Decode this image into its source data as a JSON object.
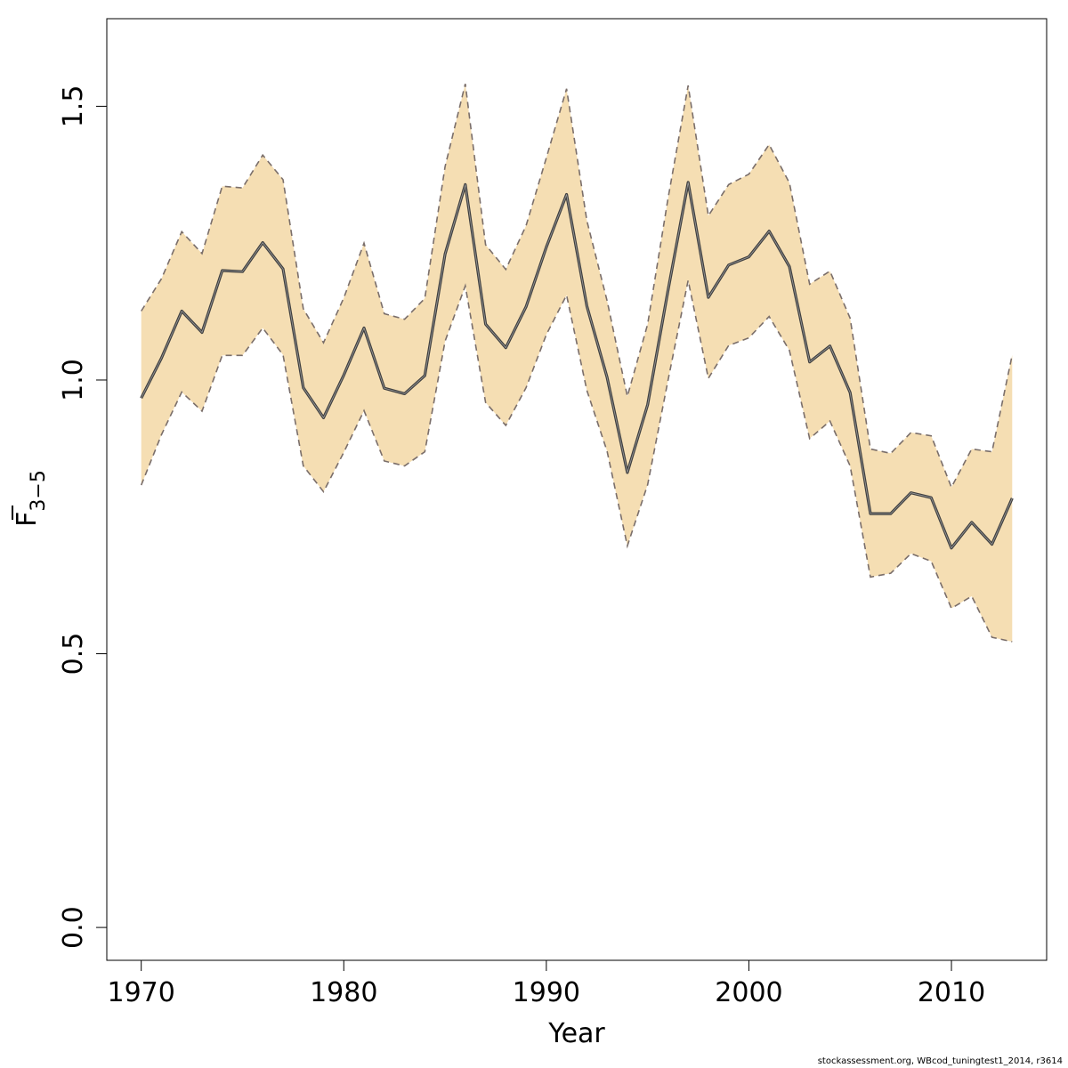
{
  "chart_data": {
    "type": "line",
    "xlabel": "Year",
    "ylabel": {
      "main": "F",
      "subscript": "3−5",
      "overline": true
    },
    "xlim": [
      1968.3,
      2014.7
    ],
    "ylim": [
      -0.06,
      1.66
    ],
    "x_ticks": [
      1970,
      1980,
      1990,
      2000,
      2010
    ],
    "y_ticks": [
      "0.0",
      "0.5",
      "1.0",
      "1.5"
    ],
    "grid": false,
    "legend": "none",
    "band_color": "#F5DEB3",
    "band_edge_color": "#7a6e6a",
    "line_color": "#404040",
    "x": [
      1970,
      1971,
      1972,
      1973,
      1974,
      1975,
      1976,
      1977,
      1978,
      1979,
      1980,
      1981,
      1982,
      1983,
      1984,
      1985,
      1986,
      1987,
      1988,
      1989,
      1990,
      1991,
      1992,
      1993,
      1994,
      1995,
      1996,
      1997,
      1998,
      1999,
      2000,
      2001,
      2002,
      2003,
      2004,
      2005,
      2006,
      2007,
      2008,
      2009,
      2010,
      2011,
      2012,
      2013
    ],
    "series": [
      {
        "role": "estimate",
        "values": [
          0.967,
          1.04,
          1.126,
          1.087,
          1.2,
          1.198,
          1.251,
          1.203,
          0.986,
          0.931,
          1.009,
          1.095,
          0.985,
          0.975,
          1.008,
          1.23,
          1.357,
          1.102,
          1.059,
          1.134,
          1.243,
          1.339,
          1.135,
          1.005,
          0.831,
          0.955,
          1.162,
          1.361,
          1.151,
          1.21,
          1.225,
          1.272,
          1.207,
          1.033,
          1.062,
          0.977,
          0.756,
          0.756,
          0.794,
          0.785,
          0.693,
          0.74,
          0.7,
          0.784
        ]
      },
      {
        "role": "lower",
        "values": [
          0.808,
          0.9,
          0.978,
          0.943,
          1.045,
          1.045,
          1.095,
          1.046,
          0.843,
          0.796,
          0.868,
          0.944,
          0.852,
          0.843,
          0.869,
          1.071,
          1.172,
          0.959,
          0.917,
          0.986,
          1.083,
          1.155,
          0.981,
          0.87,
          0.697,
          0.809,
          0.998,
          1.182,
          1.003,
          1.063,
          1.077,
          1.116,
          1.054,
          0.893,
          0.925,
          0.843,
          0.64,
          0.647,
          0.683,
          0.669,
          0.583,
          0.605,
          0.53,
          0.522
        ]
      },
      {
        "role": "upper",
        "values": [
          1.126,
          1.185,
          1.271,
          1.231,
          1.354,
          1.351,
          1.411,
          1.366,
          1.13,
          1.068,
          1.15,
          1.25,
          1.121,
          1.111,
          1.149,
          1.39,
          1.541,
          1.247,
          1.202,
          1.282,
          1.406,
          1.532,
          1.291,
          1.145,
          0.97,
          1.102,
          1.33,
          1.538,
          1.3,
          1.357,
          1.376,
          1.43,
          1.36,
          1.175,
          1.199,
          1.113,
          0.874,
          0.866,
          0.904,
          0.898,
          0.804,
          0.874,
          0.869,
          1.046
        ]
      }
    ]
  },
  "footer": "stockassessment.org, WBcod_tuningtest1_2014, r3614"
}
